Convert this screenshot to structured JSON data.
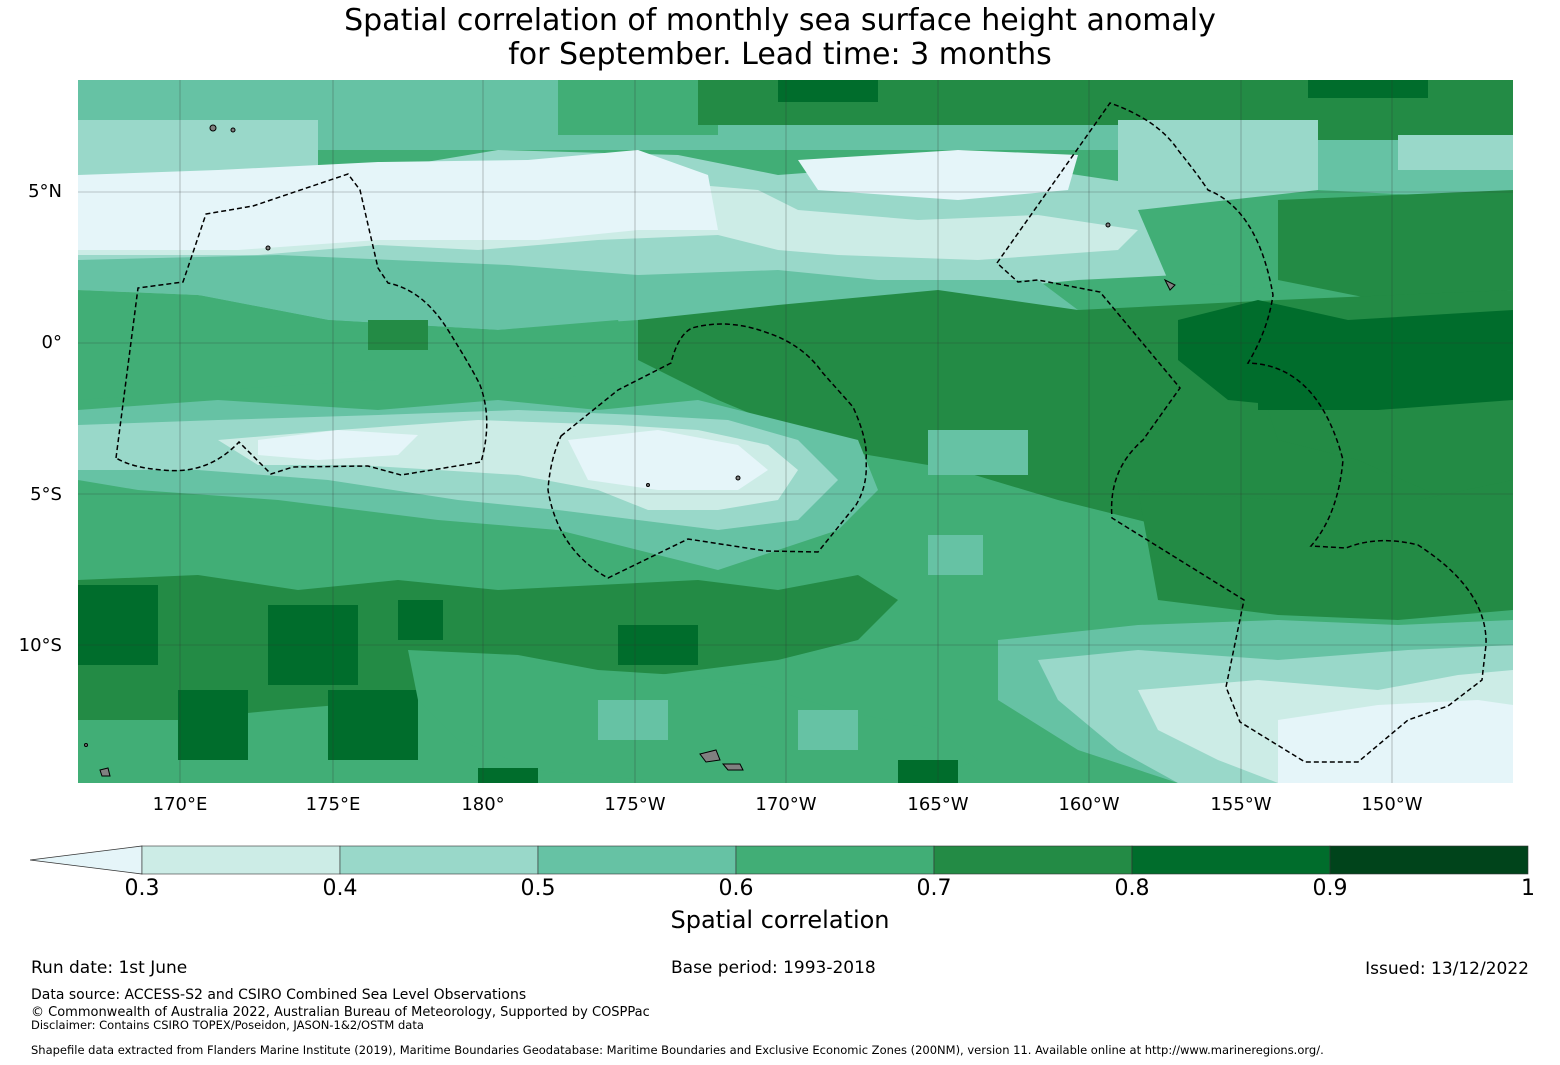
{
  "title": {
    "line1": "Spatial correlation of monthly sea surface height anomaly",
    "line2": "for September. Lead time: 3 months"
  },
  "map": {
    "lat_labels": [
      "5°N",
      "0°",
      "5°S",
      "10°S"
    ],
    "lon_labels": [
      "170°E",
      "175°E",
      "180°",
      "175°W",
      "170°W",
      "165°W",
      "160°W",
      "155°W",
      "150°W"
    ],
    "colors": {
      "below": "#e5f5f9",
      "c03": "#ccece6",
      "c04": "#99d8c9",
      "c05": "#66c2a4",
      "c06": "#41ae76",
      "c07": "#238b45",
      "c08": "#006d2c",
      "c09": "#00441b",
      "land": "#808080",
      "grid": "#2f2f2f"
    }
  },
  "colorbar": {
    "ticks": [
      "0.3",
      "0.4",
      "0.5",
      "0.6",
      "0.7",
      "0.8",
      "0.9",
      "1"
    ],
    "label": "Spatial correlation"
  },
  "footer": {
    "run_date": "Run date: 1st June",
    "base_period": "Base period: 1993-2018",
    "issued": "Issued: 13/12/2022",
    "data_source": "Data source: ACCESS-S2 and CSIRO Combined Sea Level Observations",
    "copyright": "© Commonwealth of Australia 2022, Australian Bureau of Meteorology, Supported by COSPPac",
    "disclaimer": "Disclaimer: Contains CSIRO TOPEX/Poseidon, JASON-1&2/OSTM data",
    "shapefile": "Shapefile data extracted from Flanders Marine Institute (2019), Maritime Boundaries Geodatabase: Maritime Boundaries and Exclusive Economic Zones (200NM), version 11. Available online at http://www.marineregions.org/."
  }
}
